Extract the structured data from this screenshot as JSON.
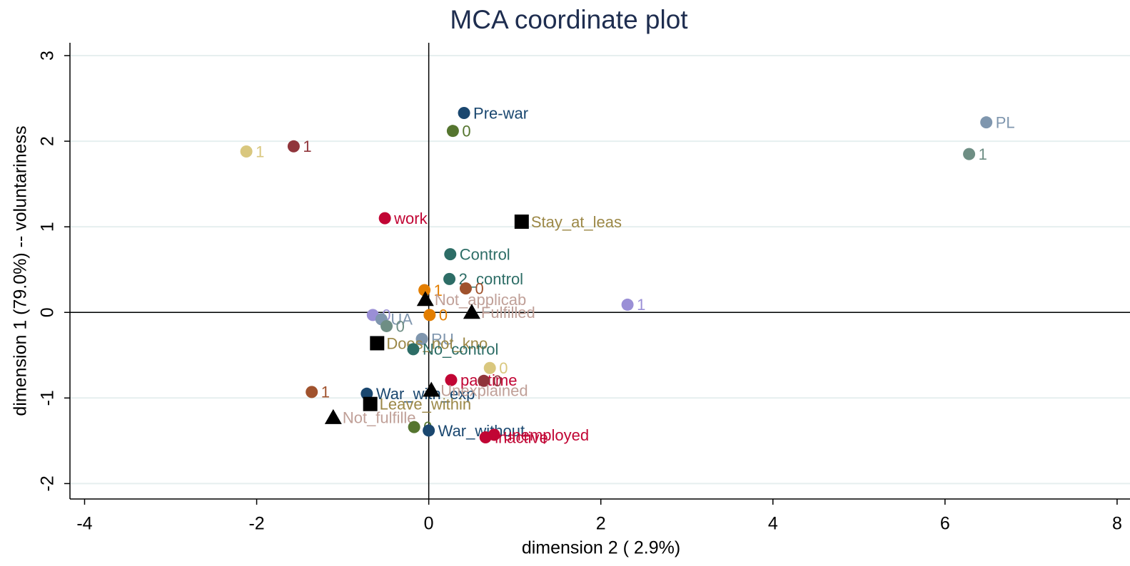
{
  "chart_data": {
    "type": "scatter",
    "title": "MCA coordinate plot",
    "xlabel": "dimension 2 ( 2.9%)",
    "ylabel": "dimension 1 (79.0%) -- voluntariness",
    "xlim": [
      -4.17,
      8.15
    ],
    "ylim": [
      -2.18,
      3.15
    ],
    "xticks": [
      -4,
      -2,
      0,
      2,
      4,
      6,
      8
    ],
    "yticks": [
      -2,
      -1,
      0,
      1,
      2,
      3
    ],
    "grid": true,
    "xline": 0,
    "yline": 0,
    "points": [
      {
        "x": 0.41,
        "y": 2.33,
        "label": "Pre-war",
        "color": "#1a476f",
        "marker": "circle"
      },
      {
        "x": 0.28,
        "y": 2.12,
        "label": "0",
        "color": "#55752f",
        "marker": "circle"
      },
      {
        "x": 6.48,
        "y": 2.22,
        "label": "PL",
        "color": "#7f96ae",
        "marker": "circle"
      },
      {
        "x": 6.28,
        "y": 1.85,
        "label": "1",
        "color": "#6e8e84",
        "marker": "circle"
      },
      {
        "x": -2.12,
        "y": 1.88,
        "label": "1",
        "color": "#d9c77e",
        "marker": "circle"
      },
      {
        "x": -1.57,
        "y": 1.94,
        "label": "1",
        "color": "#90353b",
        "marker": "circle"
      },
      {
        "x": -0.51,
        "y": 1.1,
        "label": "work",
        "color": "#c10534",
        "marker": "circle"
      },
      {
        "x": 1.08,
        "y": 1.06,
        "label": "Stay_at_leas",
        "color": "#9c8847",
        "marker": "square"
      },
      {
        "x": 0.25,
        "y": 0.68,
        "label": "Control",
        "color": "#2d6d66",
        "marker": "circle"
      },
      {
        "x": 0.24,
        "y": 0.39,
        "label": "2_control",
        "color": "#2d6d66",
        "marker": "circle"
      },
      {
        "x": -0.05,
        "y": 0.26,
        "label": "1",
        "color": "#e37e00",
        "marker": "circle"
      },
      {
        "x": 0.43,
        "y": 0.28,
        "label": "0",
        "color": "#a0522d",
        "marker": "circle"
      },
      {
        "x": -0.04,
        "y": 0.15,
        "label": "Not_applicab",
        "color": "#c0a098",
        "marker": "triangle"
      },
      {
        "x": 0.5,
        "y": 0.0,
        "label": "Fulfilled",
        "color": "#c0a098",
        "marker": "triangle"
      },
      {
        "x": 0.01,
        "y": -0.03,
        "label": "0",
        "color": "#e37e00",
        "marker": "circle"
      },
      {
        "x": 2.31,
        "y": 0.09,
        "label": "1",
        "color": "#9a8fd6",
        "marker": "circle"
      },
      {
        "x": -0.65,
        "y": -0.03,
        "label": "0",
        "color": "#9a8fd6",
        "marker": "circle"
      },
      {
        "x": -0.55,
        "y": -0.08,
        "label": "UA",
        "color": "#7f96ae",
        "marker": "circle"
      },
      {
        "x": -0.49,
        "y": -0.16,
        "label": "0",
        "color": "#6e8e84",
        "marker": "circle"
      },
      {
        "x": -0.08,
        "y": -0.31,
        "label": "RU",
        "color": "#7f96ae",
        "marker": "circle"
      },
      {
        "x": -0.6,
        "y": -0.36,
        "label": "Does_not_kno",
        "color": "#9c8847",
        "marker": "square"
      },
      {
        "x": -0.18,
        "y": -0.43,
        "label": "No_control",
        "color": "#2d6d66",
        "marker": "circle"
      },
      {
        "x": 0.71,
        "y": -0.65,
        "label": "0",
        "color": "#d9c77e",
        "marker": "circle"
      },
      {
        "x": 0.26,
        "y": -0.79,
        "label": "parttime",
        "color": "#c10534",
        "marker": "circle"
      },
      {
        "x": 0.64,
        "y": -0.8,
        "label": "0",
        "color": "#90353b",
        "marker": "circle"
      },
      {
        "x": -1.36,
        "y": -0.93,
        "label": "1",
        "color": "#a0522d",
        "marker": "circle"
      },
      {
        "x": -0.72,
        "y": -0.95,
        "label": "War_with_exp",
        "color": "#1a476f",
        "marker": "circle"
      },
      {
        "x": 0.03,
        "y": -0.91,
        "label": "Unexplained",
        "color": "#c0a098",
        "marker": "triangle"
      },
      {
        "x": -0.68,
        "y": -1.07,
        "label": "Leave_within",
        "color": "#9c8847",
        "marker": "square"
      },
      {
        "x": -1.11,
        "y": -1.23,
        "label": "Not_fulfille",
        "color": "#c0a098",
        "marker": "triangle"
      },
      {
        "x": -0.17,
        "y": -1.34,
        "label": "0",
        "color": "#55752f",
        "marker": "circle"
      },
      {
        "x": 0.0,
        "y": -1.38,
        "label": "War_without",
        "color": "#1a476f",
        "marker": "circle"
      },
      {
        "x": 0.76,
        "y": -1.43,
        "label": "unemployed",
        "color": "#c10534",
        "marker": "circle"
      },
      {
        "x": 0.66,
        "y": -1.46,
        "label": "inactive",
        "color": "#c10534",
        "marker": "circle"
      }
    ]
  }
}
